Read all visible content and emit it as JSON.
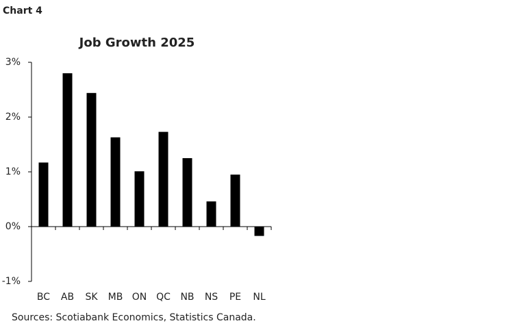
{
  "header": "Chart 4",
  "chart_data": {
    "type": "bar",
    "title": "Job Growth 2025",
    "categories": [
      "BC",
      "AB",
      "SK",
      "MB",
      "ON",
      "QC",
      "NB",
      "NS",
      "PE",
      "NL"
    ],
    "values": [
      1.17,
      2.8,
      2.44,
      1.63,
      1.01,
      1.73,
      1.25,
      0.46,
      0.95,
      -0.17
    ],
    "color": "#000000",
    "ylim": [
      -1,
      3
    ],
    "yticks": [
      {
        "value": -1,
        "label": "-1%"
      },
      {
        "value": 0,
        "label": "0%"
      },
      {
        "value": 1,
        "label": "1%"
      },
      {
        "value": 2,
        "label": "2%"
      },
      {
        "value": 3,
        "label": "3%"
      }
    ],
    "grid": false
  },
  "source": "Sources: Scotiabank Economics, Statistics Canada."
}
